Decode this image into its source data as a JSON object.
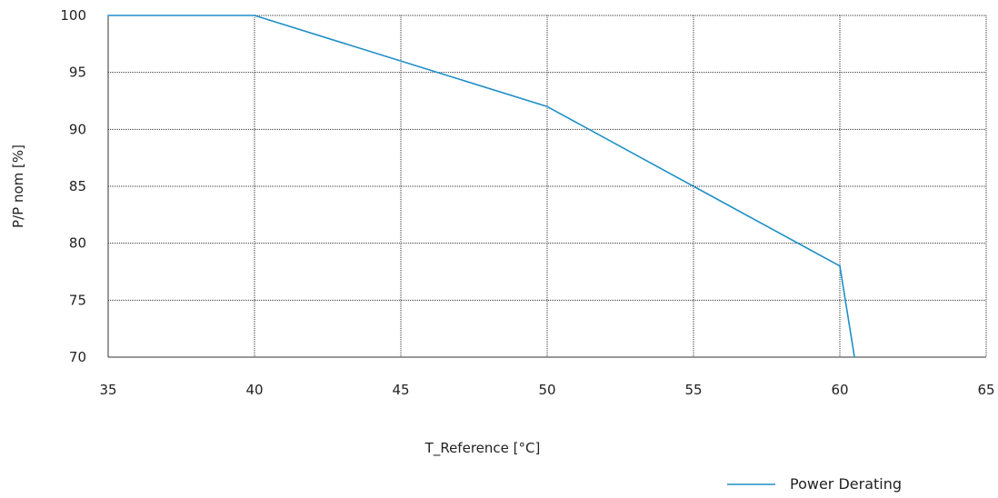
{
  "chart_data": {
    "type": "line",
    "title": "",
    "xlabel": "T_Reference [°C]",
    "ylabel": "P/P nom [%]",
    "xlim": [
      35,
      65
    ],
    "ylim": [
      70,
      100
    ],
    "x_ticks": [
      35,
      40,
      45,
      50,
      55,
      60,
      65
    ],
    "y_ticks": [
      70,
      75,
      80,
      85,
      90,
      95,
      100
    ],
    "grid": true,
    "legend_position": "bottom-right",
    "series": [
      {
        "name": "Power Derating",
        "color": "#1f8fc8",
        "x": [
          35,
          40,
          50,
          55,
          60,
          60.5
        ],
        "y": [
          100,
          100,
          92,
          85,
          78,
          70
        ]
      }
    ]
  }
}
